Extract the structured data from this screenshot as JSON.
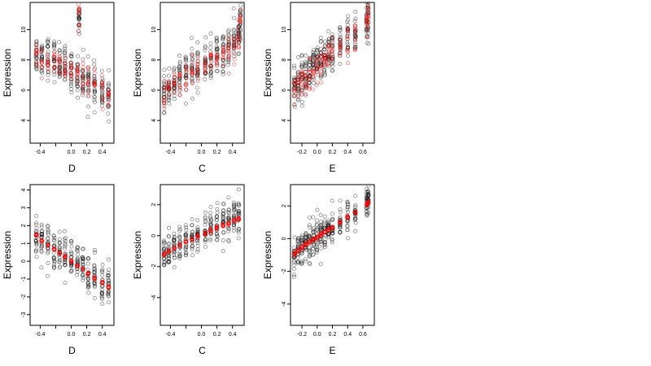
{
  "chart_data": [
    {
      "type": "scatter",
      "xlabel": "D",
      "ylabel": "Expression",
      "xlim": [
        -0.53,
        0.55
      ],
      "ylim": [
        2.5,
        11.8
      ],
      "xticks": [
        -0.4,
        -0.2,
        0.0,
        0.2,
        0.4
      ],
      "xtick_labels": [
        "-0.4",
        "0.0",
        "0.2",
        "0.4"
      ],
      "xtick_label_values": [
        -0.4,
        0.0,
        0.2,
        0.4
      ],
      "yticks": [
        4,
        6,
        8,
        10
      ],
      "ytick_labels": [
        "4",
        "6",
        "8",
        "10"
      ],
      "x_groups": [
        -0.45,
        -0.38,
        -0.3,
        -0.22,
        -0.15,
        -0.08,
        0.0,
        0.08,
        0.1,
        0.15,
        0.22,
        0.3,
        0.4,
        0.48
      ],
      "series": [
        {
          "color": "#000000",
          "center": [
            8.4,
            8.3,
            8.2,
            8.0,
            7.8,
            7.5,
            7.3,
            7.0,
            10.9,
            6.8,
            6.5,
            6.2,
            5.8,
            5.5
          ],
          "spread": 1.3
        },
        {
          "color": "#ff0000",
          "center": [
            8.2,
            8.1,
            7.9,
            7.7,
            7.6,
            7.4,
            7.2,
            7.1,
            10.7,
            6.9,
            6.6,
            6.3,
            5.9,
            5.6
          ],
          "spread": 0.9
        }
      ]
    },
    {
      "type": "scatter",
      "xlabel": "C",
      "ylabel": "Expression",
      "xlim": [
        -0.53,
        0.55
      ],
      "ylim": [
        2.5,
        11.8
      ],
      "xticks": [
        -0.4,
        -0.2,
        0.0,
        0.2,
        0.4
      ],
      "xtick_labels": [
        "-0.4",
        "0.0",
        "0.2",
        "0.4"
      ],
      "xtick_label_values": [
        -0.4,
        0.0,
        0.2,
        0.4
      ],
      "yticks": [
        4,
        6,
        8,
        10
      ],
      "ytick_labels": [
        "4",
        "6",
        "8",
        "10"
      ],
      "x_groups": [
        -0.48,
        -0.42,
        -0.35,
        -0.28,
        -0.2,
        -0.12,
        -0.05,
        0.05,
        0.12,
        0.2,
        0.28,
        0.35,
        0.42,
        0.48,
        0.5
      ],
      "series": [
        {
          "color": "#000000",
          "center": [
            5.8,
            6.1,
            6.5,
            6.8,
            7.1,
            7.3,
            7.5,
            7.8,
            8.0,
            8.3,
            8.5,
            8.8,
            9.2,
            9.6,
            10.8
          ],
          "spread": 1.4
        },
        {
          "color": "#ff0000",
          "center": [
            5.6,
            6.0,
            6.4,
            6.6,
            6.9,
            7.2,
            7.4,
            7.7,
            8.0,
            8.2,
            8.4,
            8.7,
            9.0,
            9.4,
            10.7
          ],
          "spread": 0.9
        }
      ]
    },
    {
      "type": "scatter",
      "xlabel": "E",
      "ylabel": "Expression",
      "xlim": [
        -0.35,
        0.75
      ],
      "ylim": [
        2.5,
        11.8
      ],
      "xticks": [
        -0.2,
        0.0,
        0.2,
        0.4,
        0.6
      ],
      "xtick_labels": [
        "-0.2",
        "0.0",
        "0.2",
        "0.4",
        "0.6"
      ],
      "xtick_label_values": [
        -0.2,
        0.0,
        0.2,
        0.4,
        0.6
      ],
      "yticks": [
        4,
        6,
        8,
        10
      ],
      "ytick_labels": [
        "4",
        "6",
        "8",
        "10"
      ],
      "x_groups": [
        -0.3,
        -0.25,
        -0.2,
        -0.15,
        -0.1,
        -0.05,
        0.0,
        0.05,
        0.1,
        0.15,
        0.2,
        0.3,
        0.4,
        0.5,
        0.65,
        0.67
      ],
      "series": [
        {
          "color": "#000000",
          "center": [
            6.3,
            6.5,
            6.8,
            7.0,
            7.2,
            7.4,
            7.6,
            7.9,
            8.1,
            8.4,
            8.7,
            9.0,
            9.3,
            9.6,
            10.7,
            10.9
          ],
          "spread": 1.4
        },
        {
          "color": "#ff0000",
          "center": [
            6.0,
            6.3,
            6.6,
            6.8,
            7.0,
            7.2,
            7.4,
            7.7,
            7.9,
            8.2,
            8.4,
            8.7,
            9.1,
            9.4,
            10.6,
            10.8
          ],
          "spread": 1.0
        }
      ]
    },
    {
      "type": "scatter",
      "xlabel": "D",
      "ylabel": "Expression",
      "xlim": [
        -0.53,
        0.55
      ],
      "ylim": [
        -3.6,
        4.3
      ],
      "xticks": [
        -0.4,
        -0.2,
        0.0,
        0.2,
        0.4
      ],
      "xtick_labels": [
        "-0.4",
        "0.0",
        "0.2",
        "0.4"
      ],
      "xtick_label_values": [
        -0.4,
        0.0,
        0.2,
        0.4
      ],
      "yticks": [
        -3,
        -2,
        -1,
        0,
        1,
        2,
        3,
        4
      ],
      "ytick_labels": [
        "-3",
        "-2",
        "-1",
        "0",
        "1",
        "2",
        "3",
        "4"
      ],
      "x_groups": [
        -0.45,
        -0.38,
        -0.3,
        -0.22,
        -0.15,
        -0.08,
        0.0,
        0.08,
        0.15,
        0.22,
        0.3,
        0.4,
        0.48
      ],
      "series": [
        {
          "color": "#000000",
          "center": [
            1.4,
            1.2,
            1.0,
            0.8,
            0.6,
            0.4,
            0.1,
            -0.1,
            -0.4,
            -0.6,
            -0.8,
            -1.1,
            -1.4
          ],
          "spread": 1.1
        },
        {
          "color": "#ff0000",
          "center": [
            1.45,
            1.15,
            0.9,
            0.65,
            0.45,
            0.25,
            0.0,
            -0.25,
            -0.45,
            -0.7,
            -0.95,
            -1.2,
            -1.45
          ],
          "spread": 0.06
        }
      ]
    },
    {
      "type": "scatter",
      "xlabel": "C",
      "ylabel": "Expression",
      "xlim": [
        -0.53,
        0.55
      ],
      "ylim": [
        -5.8,
        3.3
      ],
      "xticks": [
        -0.4,
        -0.2,
        0.0,
        0.2,
        0.4
      ],
      "xtick_labels": [
        "-0.4",
        "0.0",
        "0.2",
        "0.4"
      ],
      "xtick_label_values": [
        -0.4,
        0.0,
        0.2,
        0.4
      ],
      "yticks": [
        -4,
        -2,
        0,
        2
      ],
      "ytick_labels": [
        "-4",
        "-2",
        "0",
        "2"
      ],
      "x_groups": [
        -0.48,
        -0.42,
        -0.35,
        -0.28,
        -0.2,
        -0.12,
        -0.05,
        0.05,
        0.12,
        0.2,
        0.28,
        0.35,
        0.42,
        0.48
      ],
      "series": [
        {
          "color": "#000000",
          "center": [
            -1.2,
            -1.0,
            -0.8,
            -0.6,
            -0.4,
            -0.2,
            0.0,
            0.2,
            0.4,
            0.6,
            0.8,
            0.9,
            1.0,
            1.1
          ],
          "spread": 1.2
        },
        {
          "color": "#ff0000",
          "center": [
            -1.2,
            -1.0,
            -0.8,
            -0.6,
            -0.4,
            -0.25,
            -0.05,
            0.15,
            0.35,
            0.5,
            0.65,
            0.8,
            0.95,
            1.1
          ],
          "spread": 0.08
        }
      ]
    },
    {
      "type": "scatter",
      "xlabel": "E",
      "ylabel": "Expression",
      "xlim": [
        -0.35,
        0.75
      ],
      "ylim": [
        -5.3,
        3.3
      ],
      "xticks": [
        -0.2,
        0.0,
        0.2,
        0.4,
        0.6
      ],
      "xtick_labels": [
        "-0.2",
        "0.0",
        "0.2",
        "0.4",
        "0.6"
      ],
      "xtick_label_values": [
        -0.2,
        0.0,
        0.2,
        0.4,
        0.6
      ],
      "yticks": [
        -4,
        -2,
        0,
        2
      ],
      "ytick_labels": [
        "-4",
        "-2",
        "0",
        "2"
      ],
      "x_groups": [
        -0.3,
        -0.25,
        -0.2,
        -0.15,
        -0.1,
        -0.05,
        0.0,
        0.05,
        0.1,
        0.15,
        0.2,
        0.3,
        0.4,
        0.5,
        0.65,
        0.67
      ],
      "series": [
        {
          "color": "#000000",
          "center": [
            -0.9,
            -0.7,
            -0.5,
            -0.3,
            -0.1,
            0.0,
            0.2,
            0.3,
            0.5,
            0.6,
            0.8,
            1.0,
            1.3,
            1.6,
            2.2,
            2.4
          ],
          "spread": 1.1
        },
        {
          "color": "#ff0000",
          "center": [
            -0.95,
            -0.75,
            -0.55,
            -0.35,
            -0.2,
            -0.05,
            0.1,
            0.25,
            0.4,
            0.55,
            0.7,
            1.0,
            1.3,
            1.6,
            2.1,
            2.2
          ],
          "spread": 0.07
        }
      ]
    }
  ]
}
